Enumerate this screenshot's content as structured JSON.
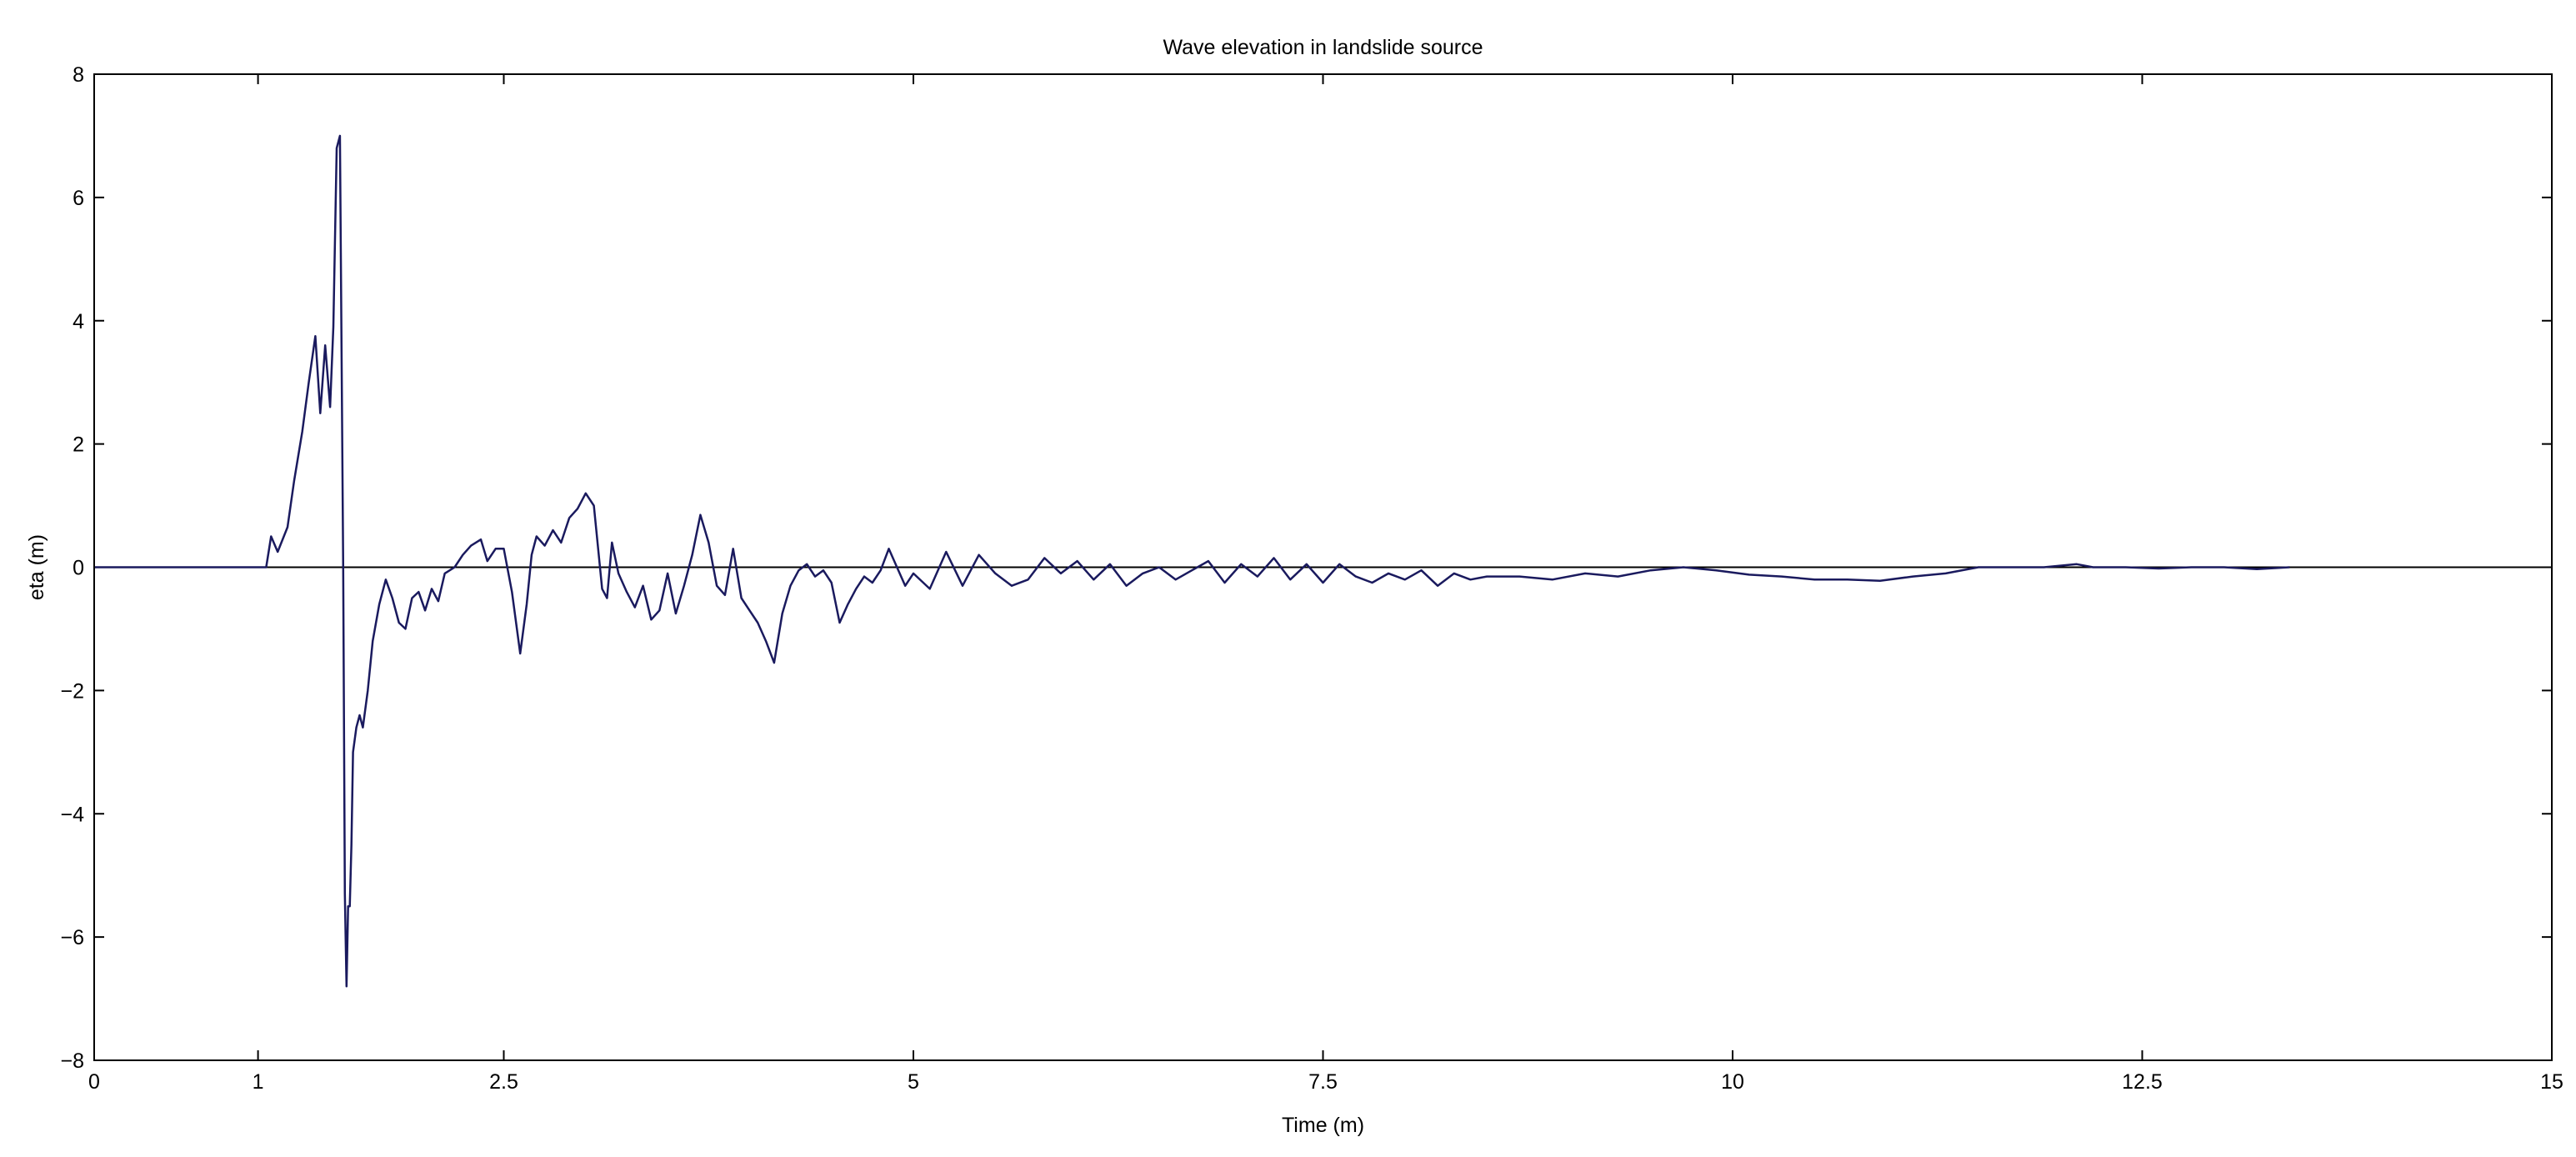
{
  "chart_data": {
    "type": "line",
    "title": "Wave elevation in landslide source",
    "xlabel": "Time (m)",
    "ylabel": "eta (m)",
    "xlim": [
      0,
      15
    ],
    "ylim": [
      -8,
      8
    ],
    "x_ticks": [
      0,
      1,
      2.5,
      5,
      7.5,
      10,
      12.5,
      15
    ],
    "x_tick_labels": [
      "0",
      "1",
      "2.5",
      "5",
      "7.5",
      "10",
      "12.5",
      "15"
    ],
    "y_ticks": [
      -8,
      -6,
      -4,
      -2,
      0,
      2,
      4,
      6,
      8
    ],
    "y_tick_labels": [
      "−8",
      "−6",
      "−4",
      "−2",
      "0",
      "2",
      "4",
      "6",
      "8"
    ],
    "grid": false,
    "line_color": "#1a1a5e",
    "baseline_color": "#000000",
    "series": [
      {
        "x": [
          0,
          1.0,
          1.05,
          1.08,
          1.12,
          1.18,
          1.22,
          1.27,
          1.31,
          1.35,
          1.38,
          1.41,
          1.44,
          1.46,
          1.48,
          1.5,
          1.52,
          1.53,
          1.54,
          1.55,
          1.56,
          1.57,
          1.58,
          1.59,
          1.6,
          1.62,
          1.64,
          1.67,
          1.7,
          1.74,
          1.78,
          1.82,
          1.86,
          1.9,
          1.94,
          1.98,
          2.02,
          2.06,
          2.1,
          2.14,
          2.2,
          2.25,
          2.3,
          2.36,
          2.4,
          2.45,
          2.5,
          2.55,
          2.6,
          2.64,
          2.67,
          2.7,
          2.75,
          2.8,
          2.85,
          2.9,
          2.95,
          3.0,
          3.05,
          3.1,
          3.13,
          3.16,
          3.2,
          3.25,
          3.3,
          3.35,
          3.4,
          3.45,
          3.5,
          3.55,
          3.6,
          3.65,
          3.7,
          3.75,
          3.8,
          3.85,
          3.9,
          3.95,
          4.0,
          4.05,
          4.1,
          4.15,
          4.2,
          4.25,
          4.3,
          4.35,
          4.4,
          4.45,
          4.5,
          4.55,
          4.6,
          4.65,
          4.7,
          4.75,
          4.8,
          4.85,
          4.9,
          4.95,
          5.0,
          5.1,
          5.2,
          5.3,
          5.4,
          5.5,
          5.6,
          5.7,
          5.8,
          5.9,
          6.0,
          6.1,
          6.2,
          6.3,
          6.4,
          6.5,
          6.6,
          6.7,
          6.8,
          6.9,
          7.0,
          7.1,
          7.2,
          7.3,
          7.4,
          7.5,
          7.6,
          7.7,
          7.8,
          7.9,
          8.0,
          8.1,
          8.2,
          8.3,
          8.4,
          8.5,
          8.7,
          8.9,
          9.1,
          9.3,
          9.5,
          9.7,
          9.9,
          10.1,
          10.3,
          10.5,
          10.7,
          10.9,
          11.1,
          11.3,
          11.5,
          11.7,
          11.9,
          12.1,
          12.2,
          12.4,
          12.6,
          12.8,
          13.0,
          13.2,
          13.4
        ],
        "y": [
          0,
          0,
          0.0,
          0.5,
          0.25,
          0.65,
          1.4,
          2.2,
          3.0,
          3.75,
          2.5,
          3.6,
          2.6,
          3.9,
          6.8,
          7.0,
          0.0,
          -5.3,
          -6.8,
          -5.5,
          -5.5,
          -4.5,
          -3.0,
          -2.8,
          -2.6,
          -2.4,
          -2.6,
          -2.0,
          -1.2,
          -0.6,
          -0.2,
          -0.5,
          -0.9,
          -1.0,
          -0.5,
          -0.4,
          -0.7,
          -0.35,
          -0.55,
          -0.1,
          0.0,
          0.2,
          0.35,
          0.45,
          0.1,
          0.3,
          0.3,
          -0.4,
          -1.4,
          -0.6,
          0.2,
          0.5,
          0.35,
          0.6,
          0.4,
          0.8,
          0.95,
          1.2,
          1.0,
          -0.35,
          -0.5,
          0.4,
          -0.1,
          -0.4,
          -0.65,
          -0.3,
          -0.85,
          -0.7,
          -0.1,
          -0.75,
          -0.3,
          0.2,
          0.85,
          0.4,
          -0.3,
          -0.45,
          0.3,
          -0.5,
          -0.7,
          -0.9,
          -1.2,
          -1.55,
          -0.75,
          -0.3,
          -0.05,
          0.05,
          -0.15,
          -0.05,
          -0.25,
          -0.9,
          -0.6,
          -0.35,
          -0.15,
          -0.25,
          -0.05,
          0.3,
          0.0,
          -0.3,
          -0.1,
          -0.35,
          0.25,
          -0.3,
          0.2,
          -0.1,
          -0.3,
          -0.2,
          0.15,
          -0.1,
          0.1,
          -0.2,
          0.05,
          -0.3,
          -0.1,
          0.0,
          -0.2,
          -0.05,
          0.1,
          -0.25,
          0.05,
          -0.15,
          0.15,
          -0.2,
          0.05,
          -0.25,
          0.05,
          -0.15,
          -0.25,
          -0.1,
          -0.2,
          -0.05,
          -0.3,
          -0.1,
          -0.2,
          -0.15,
          -0.15,
          -0.2,
          -0.1,
          -0.15,
          -0.05,
          0.0,
          -0.05,
          -0.12,
          -0.15,
          -0.2,
          -0.2,
          -0.22,
          -0.15,
          -0.1,
          0.0,
          0.0,
          0.0,
          0.05,
          0.0,
          0.0,
          -0.02,
          0.0,
          0.0,
          -0.03,
          0.0
        ]
      }
    ]
  }
}
